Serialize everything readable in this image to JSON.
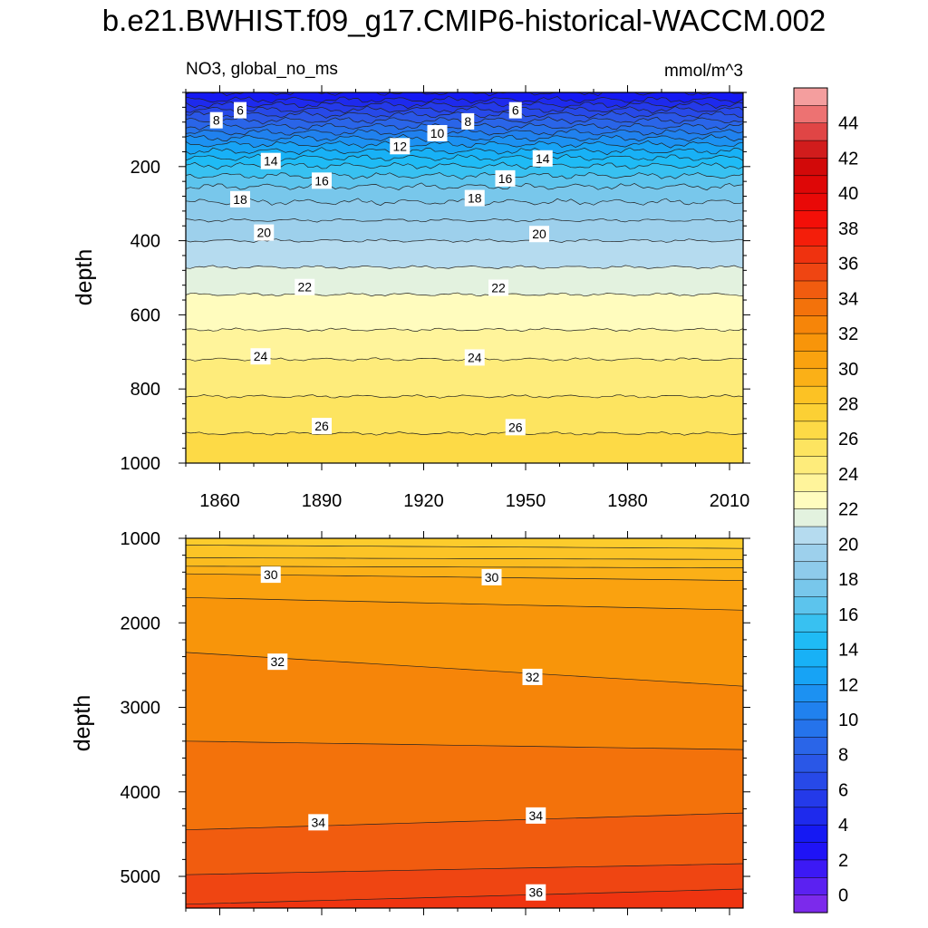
{
  "chart_data": {
    "type": "contour",
    "title": "b.e21.BWHIST.f09_g17.CMIP6-historical-WACCM.002",
    "left_subtitle": "NO3, global_no_ms",
    "right_subtitle": "mmol/m^3",
    "ylabel": "depth",
    "xlim": [
      1850,
      2014
    ],
    "x_ticks": [
      1860,
      1890,
      1920,
      1950,
      1980,
      2010
    ],
    "colorbar": {
      "levels": [
        0,
        2,
        4,
        6,
        8,
        10,
        12,
        14,
        16,
        18,
        20,
        22,
        24,
        26,
        28,
        30,
        32,
        34,
        36,
        38,
        40,
        42,
        44
      ],
      "tick_labels": [
        "0",
        "2",
        "4",
        "6",
        "8",
        "10",
        "12",
        "14",
        "16",
        "18",
        "20",
        "22",
        "24",
        "26",
        "28",
        "30",
        "32",
        "34",
        "36",
        "38",
        "40",
        "42",
        "44"
      ],
      "contour_interval": 1,
      "range": [
        -1,
        46
      ]
    },
    "panels": [
      {
        "name": "upper",
        "ylim": [
          0,
          1000
        ],
        "y_ticks": [
          200,
          400,
          600,
          800,
          1000
        ],
        "profile": [
          {
            "depth": 0,
            "value": 3.0
          },
          {
            "depth": 20,
            "value": 4.0
          },
          {
            "depth": 40,
            "value": 5.5
          },
          {
            "depth": 60,
            "value": 7.0
          },
          {
            "depth": 80,
            "value": 8.3
          },
          {
            "depth": 100,
            "value": 9.5
          },
          {
            "depth": 120,
            "value": 10.8
          },
          {
            "depth": 140,
            "value": 12.0
          },
          {
            "depth": 160,
            "value": 13.1
          },
          {
            "depth": 180,
            "value": 14.2
          },
          {
            "depth": 200,
            "value": 15.1
          },
          {
            "depth": 230,
            "value": 16.2
          },
          {
            "depth": 260,
            "value": 17.2
          },
          {
            "depth": 300,
            "value": 18.1
          },
          {
            "depth": 350,
            "value": 19.1
          },
          {
            "depth": 400,
            "value": 20.0
          },
          {
            "depth": 450,
            "value": 20.7
          },
          {
            "depth": 500,
            "value": 21.4
          },
          {
            "depth": 560,
            "value": 22.2
          },
          {
            "depth": 640,
            "value": 23.0
          },
          {
            "depth": 720,
            "value": 24.0
          },
          {
            "depth": 800,
            "value": 24.8
          },
          {
            "depth": 880,
            "value": 25.6
          },
          {
            "depth": 960,
            "value": 26.4
          },
          {
            "depth": 1000,
            "value": 26.8
          }
        ],
        "contour_labels": [
          {
            "year": 1859,
            "depth": 75,
            "text": "8"
          },
          {
            "year": 1866,
            "depth": 48,
            "text": "6"
          },
          {
            "year": 1875,
            "depth": 185,
            "text": "14"
          },
          {
            "year": 1890,
            "depth": 238,
            "text": "16"
          },
          {
            "year": 1866,
            "depth": 288,
            "text": "18"
          },
          {
            "year": 1873,
            "depth": 378,
            "text": "20"
          },
          {
            "year": 1885,
            "depth": 525,
            "text": "22"
          },
          {
            "year": 1872,
            "depth": 712,
            "text": "24"
          },
          {
            "year": 1890,
            "depth": 900,
            "text": "26"
          },
          {
            "year": 1913,
            "depth": 145,
            "text": "12"
          },
          {
            "year": 1924,
            "depth": 110,
            "text": "10"
          },
          {
            "year": 1933,
            "depth": 78,
            "text": "8"
          },
          {
            "year": 1947,
            "depth": 48,
            "text": "6"
          },
          {
            "year": 1955,
            "depth": 178,
            "text": "14"
          },
          {
            "year": 1944,
            "depth": 232,
            "text": "16"
          },
          {
            "year": 1935,
            "depth": 285,
            "text": "18"
          },
          {
            "year": 1954,
            "depth": 382,
            "text": "20"
          },
          {
            "year": 1942,
            "depth": 527,
            "text": "22"
          },
          {
            "year": 1935,
            "depth": 715,
            "text": "24"
          },
          {
            "year": 1947,
            "depth": 903,
            "text": "26"
          }
        ]
      },
      {
        "name": "lower",
        "ylim": [
          1000,
          5375
        ],
        "y_ticks": [
          1000,
          2000,
          3000,
          4000,
          5000
        ],
        "field_model": "isoline depths vary linearly in time",
        "isolines": [
          {
            "value": 28.2,
            "depth_start": 1080,
            "depth_end": 1120
          },
          {
            "value": 28.6,
            "depth_start": 1230,
            "depth_end": 1250
          },
          {
            "value": 29.0,
            "depth_start": 1330,
            "depth_end": 1350
          },
          {
            "value": 30.0,
            "depth_start": 1420,
            "depth_end": 1500
          },
          {
            "value": 31.0,
            "depth_start": 1700,
            "depth_end": 1850
          },
          {
            "value": 32.0,
            "depth_start": 2350,
            "depth_end": 2750
          },
          {
            "value": 33.0,
            "depth_start": 3400,
            "depth_end": 3500
          },
          {
            "value": 34.0,
            "depth_start": 4450,
            "depth_end": 4250
          },
          {
            "value": 35.0,
            "depth_start": 4980,
            "depth_end": 4850
          },
          {
            "value": 36.0,
            "depth_start": 5330,
            "depth_end": 5150
          }
        ],
        "contour_labels": [
          {
            "year": 1875,
            "depth": 1430,
            "text": "30"
          },
          {
            "year": 1940,
            "depth": 1460,
            "text": "30"
          },
          {
            "year": 1877,
            "depth": 2460,
            "text": "32"
          },
          {
            "year": 1952,
            "depth": 2640,
            "text": "32"
          },
          {
            "year": 1889,
            "depth": 4360,
            "text": "34"
          },
          {
            "year": 1953,
            "depth": 4280,
            "text": "34"
          },
          {
            "year": 1953,
            "depth": 5190,
            "text": "36"
          }
        ]
      }
    ]
  }
}
